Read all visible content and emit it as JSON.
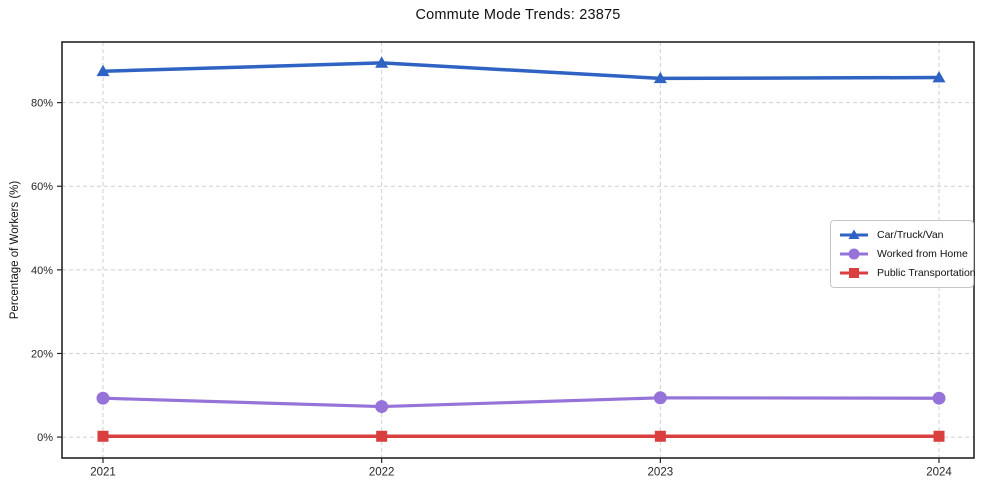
{
  "chart_data": {
    "type": "line",
    "title": "Commute Mode Trends: 23875",
    "xlabel": "",
    "ylabel": "Percentage of Workers (%)",
    "x": [
      2021,
      2022,
      2023,
      2024
    ],
    "x_tick_labels": [
      "2021",
      "2022",
      "2023",
      "2024"
    ],
    "y_ticks": [
      0,
      20,
      40,
      60,
      80
    ],
    "y_tick_labels": [
      "0%",
      "20%",
      "40%",
      "60%",
      "80%"
    ],
    "ylim": [
      -5,
      94.5
    ],
    "grid": true,
    "grid_style": "dashed-both-axes",
    "legend_position": "middle-right",
    "frame_color": "#262626",
    "grid_color": "#cfcfcf",
    "background_color": "#ffffff",
    "series": [
      {
        "name": "Car/Truck/Van",
        "color": "#2e62c3",
        "marker": "triangle-up",
        "line_width": 3.5,
        "values": [
          87.5,
          89.5,
          85.8,
          86.0
        ]
      },
      {
        "name": "Worked from Home",
        "color": "#9673d8",
        "marker": "circle",
        "line_width": 3.2,
        "values": [
          9.3,
          7.3,
          9.4,
          9.3
        ]
      },
      {
        "name": "Public Transportation",
        "color": "#d93f3f",
        "marker": "square",
        "line_width": 3.5,
        "values": [
          0.2,
          0.2,
          0.2,
          0.2
        ]
      }
    ]
  }
}
